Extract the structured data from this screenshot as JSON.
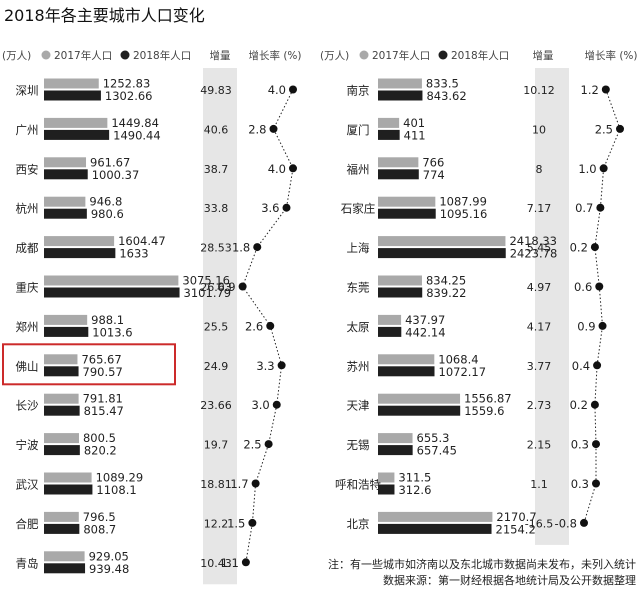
{
  "chart_data": {
    "type": "bar",
    "title": "2018年各主要城市人口变化",
    "unit": "(万人)",
    "legend": [
      "2017年人口",
      "2018年人口"
    ],
    "col_increase": "增量",
    "col_rate": "增长率 (%)",
    "highlighted_city": "佛山",
    "colors": {
      "bar2017": "#a9a9a9",
      "bar2018": "#1f1f1f",
      "band": "#e6e6e6",
      "highlight": "#cc2a2a"
    },
    "xlim": [
      0,
      3200
    ],
    "rate_lim_left": [
      0,
      4
    ],
    "rate_lim_right": [
      -0.8,
      2.5
    ],
    "panels": [
      {
        "cities": [
          {
            "name": "深圳",
            "pop2017": "1252.83",
            "pop2018": "1302.66",
            "increase": "49.83",
            "rate": "4.0"
          },
          {
            "name": "广州",
            "pop2017": "1449.84",
            "pop2018": "1490.44",
            "increase": "40.6",
            "rate": "2.8"
          },
          {
            "name": "西安",
            "pop2017": "961.67",
            "pop2018": "1000.37",
            "increase": "38.7",
            "rate": "4.0"
          },
          {
            "name": "杭州",
            "pop2017": "946.8",
            "pop2018": "980.6",
            "increase": "33.8",
            "rate": "3.6"
          },
          {
            "name": "成都",
            "pop2017": "1604.47",
            "pop2018": "1633",
            "increase": "28.53",
            "rate": "1.8"
          },
          {
            "name": "重庆",
            "pop2017": "3075.16",
            "pop2018": "3101.79",
            "increase": "26.63",
            "rate": "0.9"
          },
          {
            "name": "郑州",
            "pop2017": "988.1",
            "pop2018": "1013.6",
            "increase": "25.5",
            "rate": "2.6"
          },
          {
            "name": "佛山",
            "pop2017": "765.67",
            "pop2018": "790.57",
            "increase": "24.9",
            "rate": "3.3"
          },
          {
            "name": "长沙",
            "pop2017": "791.81",
            "pop2018": "815.47",
            "increase": "23.66",
            "rate": "3.0"
          },
          {
            "name": "宁波",
            "pop2017": "800.5",
            "pop2018": "820.2",
            "increase": "19.7",
            "rate": "2.5"
          },
          {
            "name": "武汉",
            "pop2017": "1089.29",
            "pop2018": "1108.1",
            "increase": "18.81",
            "rate": "1.7"
          },
          {
            "name": "合肥",
            "pop2017": "796.5",
            "pop2018": "808.7",
            "increase": "12.2",
            "rate": "1.5"
          },
          {
            "name": "青岛",
            "pop2017": "929.05",
            "pop2018": "939.48",
            "increase": "10.43",
            "rate": "1.1"
          }
        ]
      },
      {
        "cities": [
          {
            "name": "南京",
            "pop2017": "833.5",
            "pop2018": "843.62",
            "increase": "10.12",
            "rate": "1.2"
          },
          {
            "name": "厦门",
            "pop2017": "401",
            "pop2018": "411",
            "increase": "10",
            "rate": "2.5"
          },
          {
            "name": "福州",
            "pop2017": "766",
            "pop2018": "774",
            "increase": "8",
            "rate": "1.0"
          },
          {
            "name": "石家庄",
            "pop2017": "1087.99",
            "pop2018": "1095.16",
            "increase": "7.17",
            "rate": "0.7"
          },
          {
            "name": "上海",
            "pop2017": "2418.33",
            "pop2018": "2423.78",
            "increase": "5.45",
            "rate": "0.2"
          },
          {
            "name": "东莞",
            "pop2017": "834.25",
            "pop2018": "839.22",
            "increase": "4.97",
            "rate": "0.6"
          },
          {
            "name": "太原",
            "pop2017": "437.97",
            "pop2018": "442.14",
            "increase": "4.17",
            "rate": "0.9"
          },
          {
            "name": "苏州",
            "pop2017": "1068.4",
            "pop2018": "1072.17",
            "increase": "3.77",
            "rate": "0.4"
          },
          {
            "name": "天津",
            "pop2017": "1556.87",
            "pop2018": "1559.6",
            "increase": "2.73",
            "rate": "0.2"
          },
          {
            "name": "无锡",
            "pop2017": "655.3",
            "pop2018": "657.45",
            "increase": "2.15",
            "rate": "0.3"
          },
          {
            "name": "呼和浩特",
            "pop2017": "311.5",
            "pop2018": "312.6",
            "increase": "1.1",
            "rate": "0.3"
          },
          {
            "name": "北京",
            "pop2017": "2170.7",
            "pop2018": "2154.2",
            "increase": "-16.5",
            "rate": "-0.8"
          }
        ]
      }
    ],
    "notes": [
      "注：有一些城市如济南以及东北城市数据尚未发布，未列入统计",
      "数据来源：第一财经根据各地统计局及公开数据整理"
    ]
  }
}
